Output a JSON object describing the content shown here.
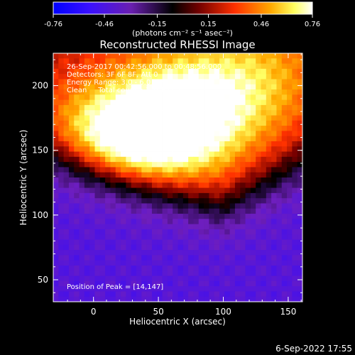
{
  "chart_data": {
    "type": "heatmap",
    "title": "Reconstructed RHESSI Image",
    "xlabel": "Heliocentric X (arcsec)",
    "ylabel": "Heliocentric Y (arcsec)",
    "xlim": [
      -31,
      161
    ],
    "ylim": [
      33,
      225
    ],
    "xticks": [
      "0",
      "50",
      "100",
      "150"
    ],
    "xtick_values": [
      0,
      50,
      100,
      150
    ],
    "yticks": [
      "50",
      "100",
      "150",
      "200"
    ],
    "ytick_values": [
      50,
      100,
      150,
      200
    ],
    "colorbar": {
      "ticks": [
        "-0.76",
        "-0.46",
        "-0.15",
        "0.15",
        "0.46",
        "0.76"
      ],
      "tick_values": [
        -0.76,
        -0.46,
        -0.15,
        0.15,
        0.46,
        0.76
      ],
      "range": [
        -0.76,
        0.76
      ],
      "units": "(photons cm⁻² s⁻¹ asec⁻²)"
    },
    "annotations": {
      "time_range": "26-Sep-2017 00:42:56.000 to 00:48:56.000",
      "detectors": "Detectors: 3F 6F 8F, Att 0",
      "energy_range": "Energy Range: 3.0 - 6.0 keV",
      "method_counts": "Clean     Total counts: 1.19E+05",
      "peak": "Position of Peak = [14,147]"
    },
    "peak_position": [
      14,
      147
    ],
    "sources": [
      {
        "x": 14,
        "y": 147,
        "peak": 0.76
      },
      {
        "x": 70,
        "y": 175,
        "peak": 0.62
      },
      {
        "x": 130,
        "y": 205,
        "peak": 0.35
      }
    ],
    "background_level": -0.4
  },
  "footer": {
    "timestamp": "6-Sep-2022 17:55"
  },
  "colors": {
    "background": "#000000",
    "text": "#ffffff",
    "colormap": [
      "#0000ff",
      "#2a00ff",
      "#6a1fb0",
      "#000000",
      "#7a0000",
      "#ff4000",
      "#ffb000",
      "#ffff80",
      "#ffffff"
    ]
  }
}
